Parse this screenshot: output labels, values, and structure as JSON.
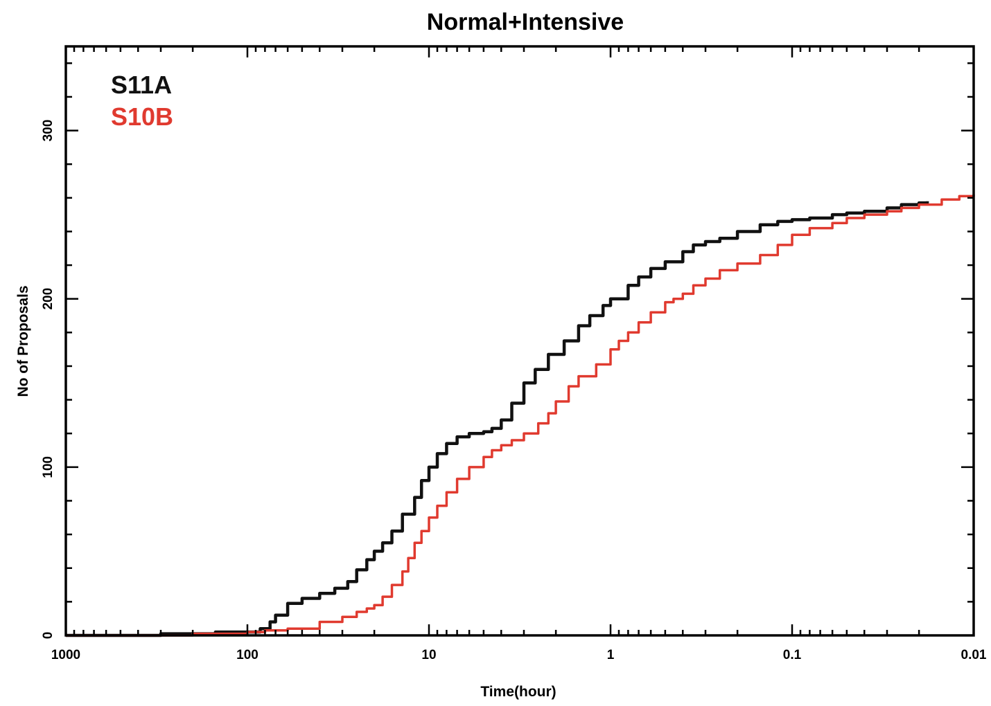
{
  "chart_data": {
    "type": "line",
    "title": "Normal+Intensive",
    "xlabel": "Time(hour)",
    "ylabel": "No of Proposals",
    "x_scale": "log",
    "x_reversed": true,
    "xlim": [
      1000,
      0.01
    ],
    "ylim": [
      0,
      350
    ],
    "x_ticks": [
      1000,
      100,
      10,
      1,
      0.1,
      0.01
    ],
    "x_tick_labels": [
      "1000",
      "100",
      "10",
      "1",
      "0.1",
      "0.01"
    ],
    "y_ticks": [
      0,
      100,
      200,
      300
    ],
    "y_tick_labels": [
      "0",
      "100",
      "200",
      "300"
    ],
    "grid": false,
    "legend_position": "top-left",
    "series": [
      {
        "name": "S11A",
        "color": "#111111",
        "x": [
          1000,
          300,
          150,
          100,
          85,
          75,
          70,
          60,
          50,
          40,
          33,
          28,
          25,
          22,
          20,
          18,
          16,
          14,
          12,
          11,
          10,
          9,
          8,
          7,
          6,
          5,
          4.5,
          4,
          3.5,
          3,
          2.6,
          2.2,
          1.8,
          1.5,
          1.3,
          1.1,
          1.0,
          0.8,
          0.7,
          0.6,
          0.5,
          0.4,
          0.35,
          0.3,
          0.25,
          0.2,
          0.15,
          0.12,
          0.1,
          0.08,
          0.06,
          0.05,
          0.04,
          0.03,
          0.025,
          0.02,
          0.018
        ],
        "values": [
          0,
          1,
          2,
          2,
          4,
          8,
          12,
          19,
          22,
          25,
          28,
          32,
          39,
          45,
          50,
          55,
          62,
          72,
          82,
          92,
          100,
          108,
          114,
          118,
          120,
          121,
          123,
          128,
          138,
          150,
          158,
          167,
          175,
          184,
          190,
          196,
          200,
          208,
          213,
          218,
          222,
          228,
          232,
          234,
          236,
          240,
          244,
          246,
          247,
          248,
          250,
          251,
          252,
          254,
          256,
          257,
          258
        ]
      },
      {
        "name": "S10B",
        "color": "#e03a2f",
        "x": [
          1000,
          300,
          200,
          100,
          80,
          60,
          50,
          40,
          30,
          25,
          22,
          20,
          18,
          16,
          14,
          13,
          12,
          11,
          10,
          9,
          8,
          7,
          6,
          5,
          4.5,
          4,
          3.5,
          3,
          2.5,
          2.2,
          2,
          1.7,
          1.5,
          1.2,
          1.0,
          0.9,
          0.8,
          0.7,
          0.6,
          0.5,
          0.45,
          0.4,
          0.35,
          0.3,
          0.25,
          0.2,
          0.15,
          0.12,
          0.1,
          0.08,
          0.06,
          0.05,
          0.04,
          0.03,
          0.025,
          0.02,
          0.015,
          0.012,
          0.01
        ],
        "values": [
          0,
          0,
          1,
          2,
          3,
          4,
          4,
          8,
          11,
          14,
          16,
          18,
          23,
          30,
          38,
          46,
          55,
          62,
          70,
          77,
          85,
          93,
          100,
          106,
          110,
          113,
          116,
          120,
          126,
          132,
          139,
          148,
          154,
          161,
          170,
          175,
          180,
          186,
          192,
          198,
          200,
          203,
          208,
          212,
          217,
          221,
          226,
          232,
          238,
          242,
          245,
          248,
          250,
          252,
          254,
          256,
          259,
          261,
          262
        ]
      }
    ]
  }
}
